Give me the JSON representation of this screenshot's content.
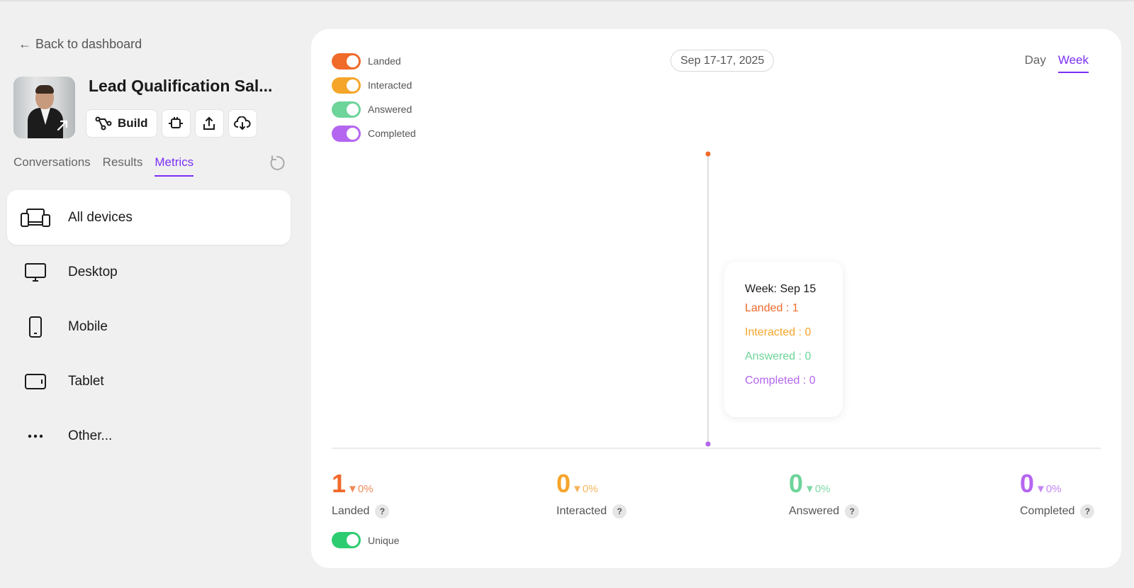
{
  "nav": {
    "back_label": "Back to dashboard"
  },
  "project": {
    "title": "Lead Qualification Sal...",
    "toolbar": {
      "build_label": "Build"
    }
  },
  "tabs": [
    {
      "label": "Conversations",
      "active": false
    },
    {
      "label": "Results",
      "active": false
    },
    {
      "label": "Metrics",
      "active": true
    }
  ],
  "devices": [
    {
      "label": "All devices",
      "icon": "devices-icon",
      "active": true
    },
    {
      "label": "Desktop",
      "icon": "desktop-icon",
      "active": false
    },
    {
      "label": "Mobile",
      "icon": "mobile-icon",
      "active": false
    },
    {
      "label": "Tablet",
      "icon": "tablet-icon",
      "active": false
    },
    {
      "label": "Other...",
      "icon": "more-icon",
      "active": false
    }
  ],
  "legend": [
    {
      "label": "Landed",
      "color": "#f06a2a",
      "on": true
    },
    {
      "label": "Interacted",
      "color": "#f5a52a",
      "on": true
    },
    {
      "label": "Answered",
      "color": "#6dd49a",
      "on": true
    },
    {
      "label": "Completed",
      "color": "#b566f0",
      "on": true
    }
  ],
  "date_range": "Sep 17-17, 2025",
  "period": {
    "day_label": "Day",
    "week_label": "Week",
    "selected": "Week"
  },
  "tooltip": {
    "title": "Week: Sep 15",
    "rows": [
      {
        "text": "Landed : 1",
        "color": "#f06a2a"
      },
      {
        "text": "Interacted : 0",
        "color": "#f5a52a"
      },
      {
        "text": "Answered : 0",
        "color": "#6dd49a"
      },
      {
        "text": "Completed : 0",
        "color": "#b566f0"
      }
    ]
  },
  "stats": [
    {
      "value": "1",
      "change": "▼0%",
      "label": "Landed",
      "color": "#f06a2a"
    },
    {
      "value": "0",
      "change": "▼0%",
      "label": "Interacted",
      "color": "#f5a52a"
    },
    {
      "value": "0",
      "change": "▼0%",
      "label": "Answered",
      "color": "#6dd49a"
    },
    {
      "value": "0",
      "change": "▼0%",
      "label": "Completed",
      "color": "#b566f0"
    }
  ],
  "unique": {
    "label": "Unique",
    "on": true,
    "color": "#2ecc71"
  },
  "chart_data": {
    "type": "line",
    "categories": [
      "Week: Sep 15"
    ],
    "series": [
      {
        "name": "Landed",
        "values": [
          1
        ],
        "color": "#f06a2a"
      },
      {
        "name": "Interacted",
        "values": [
          0
        ],
        "color": "#f5a52a"
      },
      {
        "name": "Answered",
        "values": [
          0
        ],
        "color": "#6dd49a"
      },
      {
        "name": "Completed",
        "values": [
          0
        ],
        "color": "#b566f0"
      }
    ],
    "ylim": [
      0,
      1
    ],
    "grid": false
  }
}
